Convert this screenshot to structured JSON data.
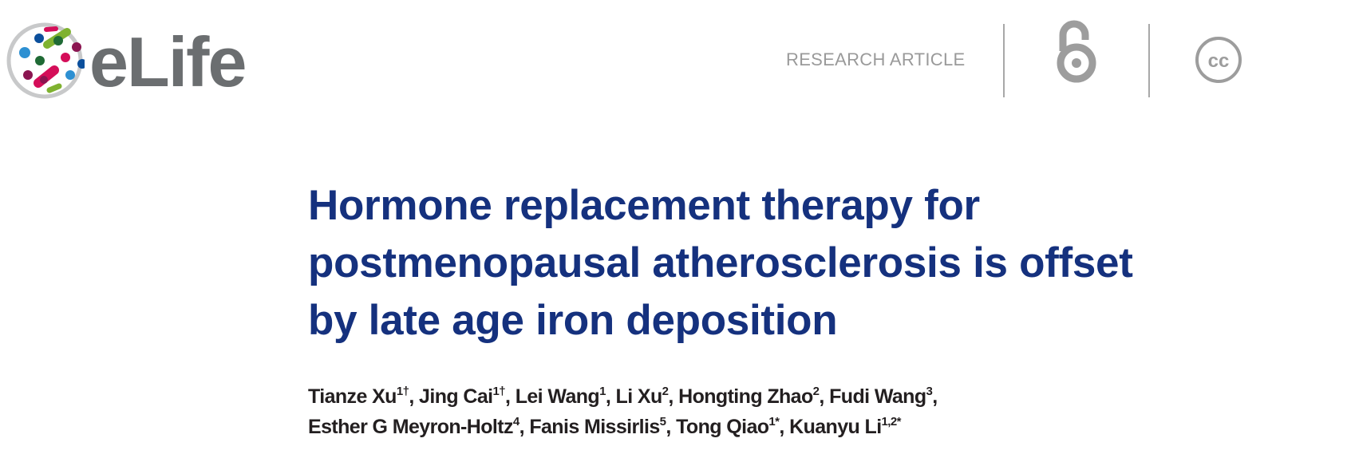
{
  "header": {
    "brand": "eLife",
    "article_type": "RESEARCH ARTICLE",
    "icons": [
      "elife-logo-icon",
      "open-access-icon",
      "creative-commons-icon"
    ],
    "colors": {
      "brand_gray": "#6b6e70",
      "title_blue": "#15317e"
    }
  },
  "title": {
    "lines": [
      "Hormone replacement therapy for",
      "postmenopausal atherosclerosis is offset",
      "by late age iron deposition"
    ]
  },
  "authors": [
    {
      "name": "Tianze Xu",
      "sup": "1†"
    },
    {
      "name": "Jing Cai",
      "sup": "1†"
    },
    {
      "name": "Lei Wang",
      "sup": "1"
    },
    {
      "name": "Li Xu",
      "sup": "2"
    },
    {
      "name": "Hongting Zhao",
      "sup": "2"
    },
    {
      "name": "Fudi Wang",
      "sup": "3"
    },
    {
      "name": "Esther G Meyron-Holtz",
      "sup": "4"
    },
    {
      "name": "Fanis Missirlis",
      "sup": "5"
    },
    {
      "name": "Tong Qiao",
      "sup": "1*"
    },
    {
      "name": "Kuanyu Li",
      "sup": "1,2*"
    }
  ]
}
